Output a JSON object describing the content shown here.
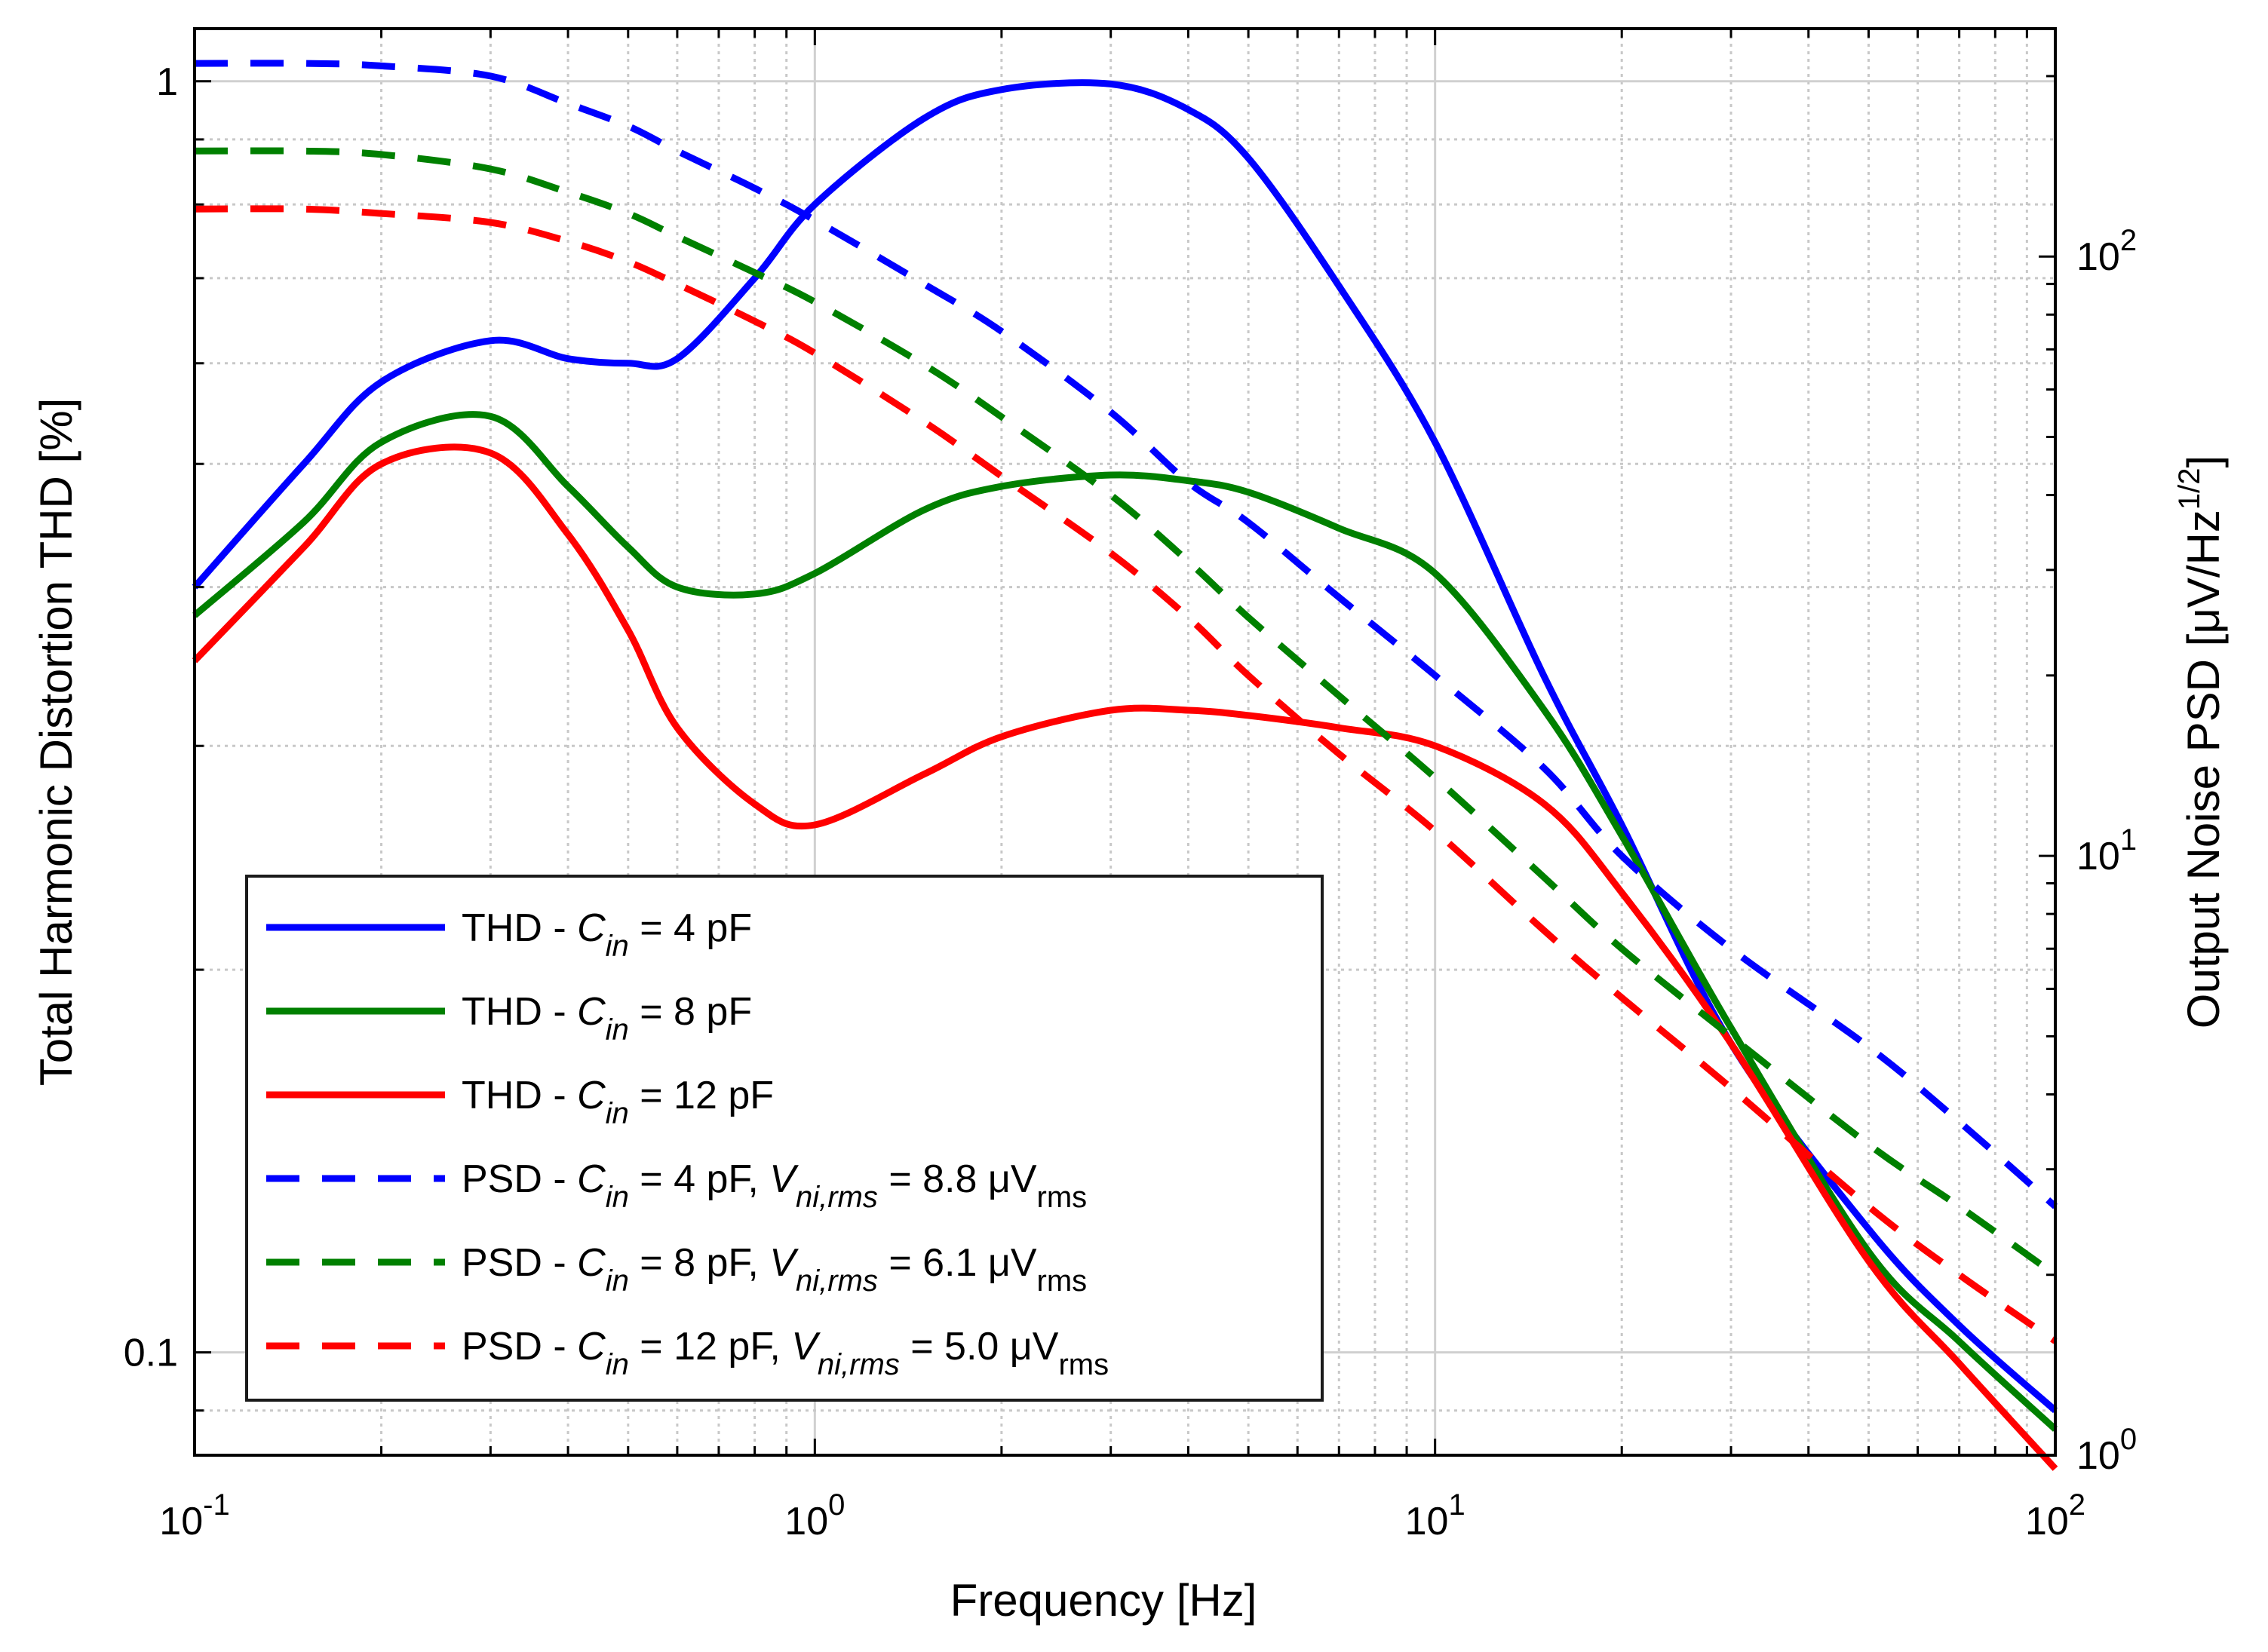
{
  "chart_data": {
    "type": "line",
    "title": "",
    "xlabel": "Frequency [Hz]",
    "ylabel_left": "Total Harmonic Distortion THD [%]",
    "ylabel_right": {
      "base": "Output Noise PSD [μV/Hz",
      "sup": "1/2",
      "end": "]"
    },
    "x_scale": "log",
    "y_left_scale": "log",
    "y_right_scale": "log",
    "xlim": [
      0.1,
      100
    ],
    "ylim_left": [
      0.083,
      1.1
    ],
    "ylim_right": [
      1,
      240
    ],
    "grid": true,
    "legend_position": "lower-left",
    "x_ticks": [
      {
        "value": 0.1,
        "base": "10",
        "exp": "-1"
      },
      {
        "value": 1,
        "base": "10",
        "exp": "0"
      },
      {
        "value": 10,
        "base": "10",
        "exp": "1"
      },
      {
        "value": 100,
        "base": "10",
        "exp": "2"
      }
    ],
    "y_left_ticks": [
      {
        "value": 1,
        "label": "1"
      },
      {
        "value": 0.1,
        "label": "0.1"
      }
    ],
    "y_right_ticks": [
      {
        "value": 100,
        "base": "10",
        "exp": "2"
      },
      {
        "value": 10,
        "base": "10",
        "exp": "1"
      },
      {
        "value": 1,
        "base": "10",
        "exp": "0"
      }
    ],
    "x": [
      0.1,
      0.15,
      0.2,
      0.3,
      0.4,
      0.5,
      0.6,
      0.8,
      1,
      1.5,
      2,
      3,
      4,
      5,
      7,
      10,
      15,
      20,
      30,
      50,
      70,
      100
    ],
    "series": [
      {
        "name": "THD - Cin = 4 pF",
        "axis": "left",
        "style": "solid",
        "color": "#0000ff",
        "values": [
          0.4,
          0.5,
          0.58,
          0.625,
          0.605,
          0.6,
          0.605,
          0.7,
          0.8,
          0.935,
          0.985,
          0.995,
          0.95,
          0.87,
          0.69,
          0.52,
          0.34,
          0.26,
          0.175,
          0.125,
          0.105,
          0.09
        ]
      },
      {
        "name": "THD - Cin = 8 pF",
        "axis": "left",
        "style": "solid",
        "color": "#008000",
        "values": [
          0.38,
          0.45,
          0.52,
          0.545,
          0.48,
          0.43,
          0.4,
          0.395,
          0.41,
          0.46,
          0.48,
          0.49,
          0.485,
          0.475,
          0.445,
          0.41,
          0.32,
          0.255,
          0.18,
          0.12,
          0.102,
          0.087
        ]
      },
      {
        "name": "THD - Cin = 12 pF",
        "axis": "left",
        "style": "solid",
        "color": "#ff0000",
        "values": [
          0.35,
          0.43,
          0.5,
          0.51,
          0.44,
          0.37,
          0.31,
          0.27,
          0.26,
          0.285,
          0.305,
          0.32,
          0.32,
          0.317,
          0.31,
          0.3,
          0.27,
          0.23,
          0.175,
          0.118,
          0.098,
          0.081
        ]
      },
      {
        "name": "PSD - Cin = 4 pF, Vni,rms = 8.8 μVrms",
        "axis": "right",
        "style": "dashed",
        "color": "#0000ff",
        "values": [
          210,
          210,
          208,
          200,
          180,
          165,
          150,
          130,
          115,
          90,
          75,
          55,
          42,
          36,
          27,
          20,
          14,
          10,
          7,
          4.8,
          3.6,
          2.6
        ]
      },
      {
        "name": "PSD - Cin = 8 pF, Vni,rms = 6.1 μVrms",
        "axis": "right",
        "style": "dashed",
        "color": "#008000",
        "values": [
          150,
          150,
          148,
          140,
          128,
          118,
          108,
          94,
          84,
          66,
          54,
          40,
          31,
          25,
          18.5,
          13.5,
          9.2,
          7,
          5,
          3.3,
          2.6,
          2
        ]
      },
      {
        "name": "PSD - Cin = 12 pF, Vni,rms = 5.0 μVrms",
        "axis": "right",
        "style": "dashed",
        "color": "#ff0000",
        "values": [
          120,
          120,
          118,
          114,
          106,
          98,
          90,
          78,
          69,
          53,
          43,
          32,
          25,
          20,
          14.8,
          11,
          7.5,
          5.8,
          4.1,
          2.6,
          2,
          1.55
        ]
      }
    ],
    "legend": [
      {
        "label": "THD - ",
        "sym": "C",
        "symsub": "in",
        "mid": " = 4 pF",
        "sym2": "",
        "sym2sub": "",
        "mid2": "",
        "unitsub": ""
      },
      {
        "label": "THD - ",
        "sym": "C",
        "symsub": "in",
        "mid": " = 8 pF",
        "sym2": "",
        "sym2sub": "",
        "mid2": "",
        "unitsub": ""
      },
      {
        "label": "THD - ",
        "sym": "C",
        "symsub": "in",
        "mid": " = 12 pF",
        "sym2": "",
        "sym2sub": "",
        "mid2": "",
        "unitsub": ""
      },
      {
        "label": "PSD - ",
        "sym": "C",
        "symsub": "in",
        "mid": " = 4 pF, ",
        "sym2": "V",
        "sym2sub": "ni,rms",
        "mid2": " = 8.8 μV",
        "unitsub": "rms"
      },
      {
        "label": "PSD - ",
        "sym": "C",
        "symsub": "in",
        "mid": " = 8 pF, ",
        "sym2": "V",
        "sym2sub": "ni,rms",
        "mid2": " = 6.1 μV",
        "unitsub": "rms"
      },
      {
        "label": "PSD - ",
        "sym": "C",
        "symsub": "in",
        "mid": " = 12 pF, ",
        "sym2": "V",
        "sym2sub": "ni,rms",
        "mid2": " = 5.0 μV",
        "unitsub": "rms"
      }
    ]
  }
}
